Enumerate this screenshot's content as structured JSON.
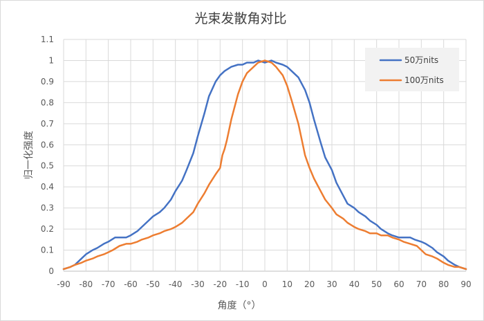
{
  "chart_data": {
    "type": "line",
    "title": "光束发散角对比",
    "xlabel": "角度（°）",
    "ylabel": "归一化强度",
    "xlim": [
      -90,
      90
    ],
    "ylim": [
      0,
      1.1
    ],
    "xticks": [
      -90,
      -80,
      -70,
      -60,
      -50,
      -40,
      -30,
      -20,
      -10,
      0,
      10,
      20,
      30,
      40,
      50,
      60,
      70,
      80,
      90
    ],
    "yticks": [
      0,
      0.1,
      0.2,
      0.3,
      0.4,
      0.5,
      0.6,
      0.7,
      0.8,
      0.9,
      1,
      1.1
    ],
    "grid": true,
    "legend_position": "top-right",
    "series": [
      {
        "name": "50万nits",
        "color": "#4472c4",
        "x": [
          -90,
          -87,
          -85,
          -82,
          -80,
          -77,
          -75,
          -72,
          -70,
          -67,
          -65,
          -62,
          -60,
          -57,
          -55,
          -52,
          -50,
          -47,
          -45,
          -42,
          -40,
          -37,
          -35,
          -32,
          -30,
          -27,
          -25,
          -22,
          -20,
          -18,
          -15,
          -12,
          -10,
          -8,
          -5,
          -3,
          0,
          3,
          5,
          8,
          10,
          12,
          15,
          18,
          20,
          22,
          25,
          27,
          30,
          32,
          35,
          37,
          40,
          42,
          45,
          47,
          50,
          52,
          55,
          57,
          60,
          62,
          65,
          67,
          70,
          72,
          75,
          77,
          80,
          82,
          85,
          87,
          90
        ],
        "y": [
          0.01,
          0.02,
          0.03,
          0.06,
          0.08,
          0.1,
          0.11,
          0.13,
          0.14,
          0.16,
          0.16,
          0.16,
          0.17,
          0.19,
          0.21,
          0.24,
          0.26,
          0.28,
          0.3,
          0.34,
          0.38,
          0.43,
          0.48,
          0.56,
          0.64,
          0.75,
          0.83,
          0.9,
          0.93,
          0.95,
          0.97,
          0.98,
          0.98,
          0.99,
          0.99,
          1.0,
          0.99,
          1.0,
          0.99,
          0.98,
          0.97,
          0.95,
          0.92,
          0.86,
          0.8,
          0.72,
          0.61,
          0.54,
          0.48,
          0.42,
          0.36,
          0.32,
          0.3,
          0.28,
          0.26,
          0.24,
          0.22,
          0.2,
          0.18,
          0.17,
          0.16,
          0.16,
          0.16,
          0.15,
          0.14,
          0.13,
          0.11,
          0.09,
          0.07,
          0.05,
          0.03,
          0.02,
          0.01
        ]
      },
      {
        "name": "100万nits",
        "color": "#ed7d31",
        "x": [
          -90,
          -87,
          -85,
          -82,
          -80,
          -77,
          -75,
          -72,
          -70,
          -68,
          -65,
          -62,
          -60,
          -57,
          -55,
          -52,
          -50,
          -47,
          -45,
          -42,
          -40,
          -37,
          -35,
          -32,
          -30,
          -27,
          -25,
          -22,
          -20,
          -19,
          -18,
          -17,
          -15,
          -12,
          -10,
          -8,
          -5,
          -3,
          0,
          3,
          5,
          8,
          10,
          12,
          15,
          17,
          18,
          19,
          20,
          22,
          25,
          27,
          30,
          32,
          35,
          37,
          40,
          42,
          45,
          47,
          50,
          52,
          55,
          57,
          60,
          62,
          65,
          68,
          70,
          72,
          75,
          77,
          80,
          82,
          85,
          87,
          90
        ],
        "y": [
          0.01,
          0.02,
          0.03,
          0.04,
          0.05,
          0.06,
          0.07,
          0.08,
          0.09,
          0.1,
          0.12,
          0.13,
          0.13,
          0.14,
          0.15,
          0.16,
          0.17,
          0.18,
          0.19,
          0.2,
          0.21,
          0.23,
          0.25,
          0.28,
          0.32,
          0.37,
          0.41,
          0.46,
          0.49,
          0.55,
          0.58,
          0.62,
          0.72,
          0.84,
          0.9,
          0.94,
          0.97,
          0.99,
          1.0,
          0.99,
          0.97,
          0.93,
          0.88,
          0.81,
          0.7,
          0.6,
          0.55,
          0.52,
          0.49,
          0.44,
          0.38,
          0.34,
          0.3,
          0.27,
          0.25,
          0.23,
          0.21,
          0.2,
          0.19,
          0.18,
          0.18,
          0.17,
          0.17,
          0.16,
          0.15,
          0.14,
          0.13,
          0.12,
          0.1,
          0.08,
          0.07,
          0.06,
          0.04,
          0.03,
          0.02,
          0.02,
          0.01
        ]
      }
    ]
  }
}
